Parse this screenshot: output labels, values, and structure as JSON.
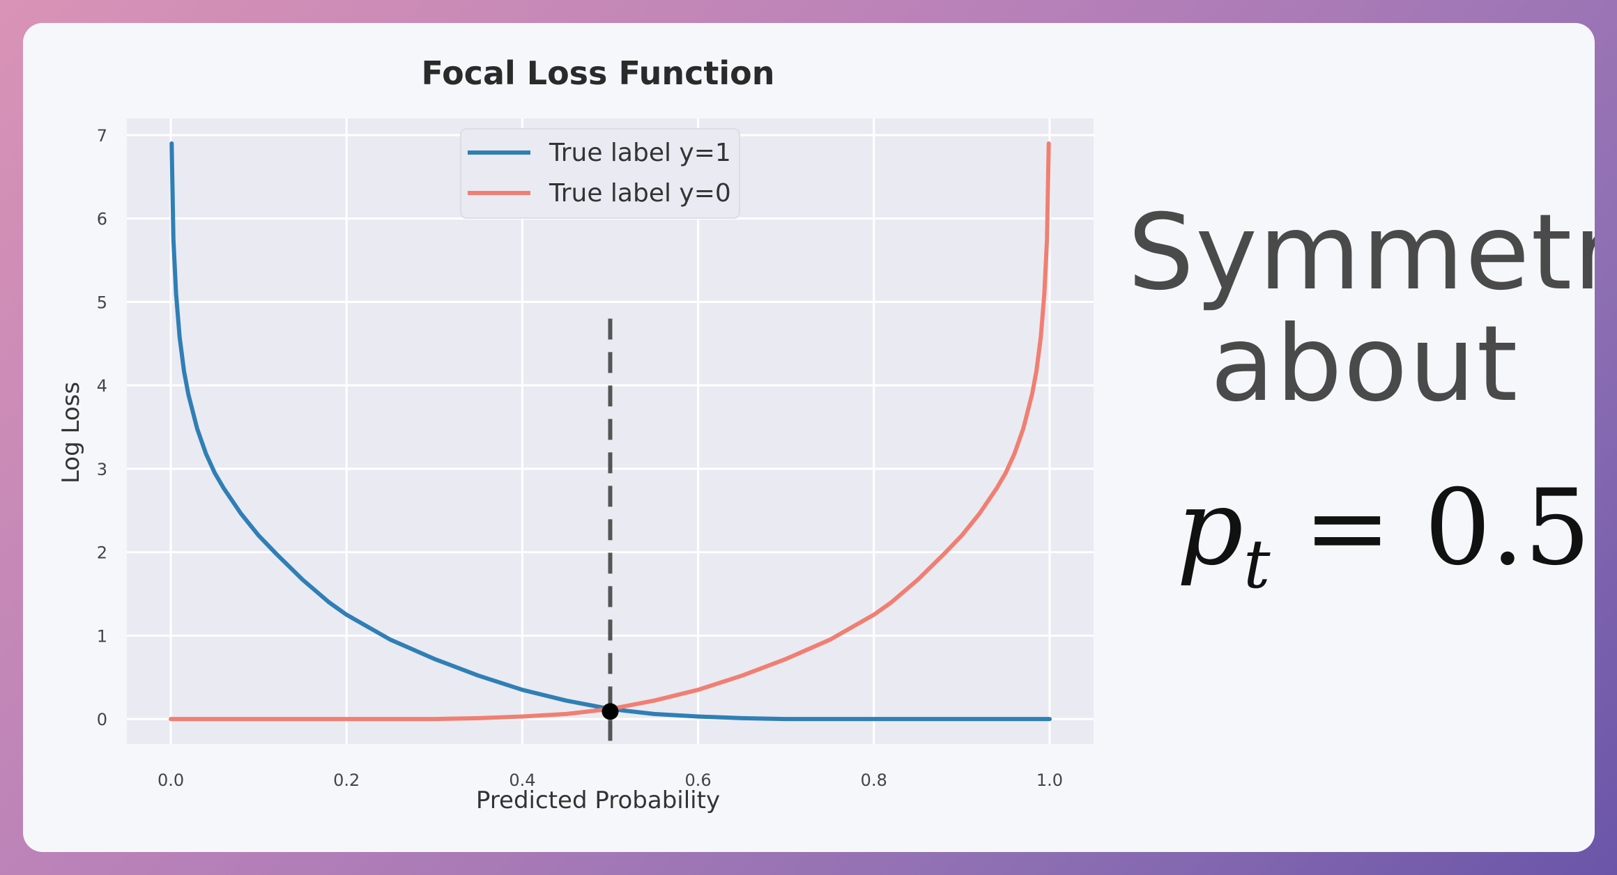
{
  "chart_data": {
    "type": "line",
    "title": "Focal Loss Function",
    "xlabel": "Predicted Probability",
    "ylabel": "Log Loss",
    "xlim": [
      -0.05,
      1.05
    ],
    "ylim": [
      -0.3,
      7.2
    ],
    "x_ticks": [
      "0.0",
      "0.2",
      "0.4",
      "0.6",
      "0.8",
      "1.0"
    ],
    "y_ticks": [
      "0",
      "1",
      "2",
      "3",
      "4",
      "5",
      "6",
      "7"
    ],
    "grid": true,
    "legend_position": "top-center",
    "series": [
      {
        "name": "True label y=1",
        "color": "#2f7fb5",
        "points": [
          [
            0.001,
            6.9
          ],
          [
            0.003,
            5.75
          ],
          [
            0.006,
            5.1
          ],
          [
            0.01,
            4.58
          ],
          [
            0.015,
            4.17
          ],
          [
            0.02,
            3.89
          ],
          [
            0.03,
            3.48
          ],
          [
            0.04,
            3.18
          ],
          [
            0.05,
            2.95
          ],
          [
            0.06,
            2.77
          ],
          [
            0.08,
            2.46
          ],
          [
            0.1,
            2.2
          ],
          [
            0.12,
            1.98
          ],
          [
            0.15,
            1.67
          ],
          [
            0.18,
            1.4
          ],
          [
            0.2,
            1.25
          ],
          [
            0.25,
            0.95
          ],
          [
            0.3,
            0.72
          ],
          [
            0.35,
            0.52
          ],
          [
            0.4,
            0.35
          ],
          [
            0.45,
            0.22
          ],
          [
            0.5,
            0.12
          ],
          [
            0.55,
            0.06
          ],
          [
            0.6,
            0.03
          ],
          [
            0.65,
            0.01
          ],
          [
            0.7,
            0.0
          ],
          [
            0.8,
            0.0
          ],
          [
            0.9,
            0.0
          ],
          [
            1.0,
            0.0
          ]
        ]
      },
      {
        "name": "True label y=0",
        "color": "#f07f72",
        "points": [
          [
            0.0,
            0.0
          ],
          [
            0.1,
            0.0
          ],
          [
            0.2,
            0.0
          ],
          [
            0.3,
            0.0
          ],
          [
            0.35,
            0.01
          ],
          [
            0.4,
            0.03
          ],
          [
            0.45,
            0.06
          ],
          [
            0.5,
            0.12
          ],
          [
            0.55,
            0.22
          ],
          [
            0.6,
            0.35
          ],
          [
            0.65,
            0.52
          ],
          [
            0.7,
            0.72
          ],
          [
            0.75,
            0.95
          ],
          [
            0.8,
            1.25
          ],
          [
            0.82,
            1.4
          ],
          [
            0.85,
            1.67
          ],
          [
            0.88,
            1.98
          ],
          [
            0.9,
            2.2
          ],
          [
            0.92,
            2.46
          ],
          [
            0.94,
            2.77
          ],
          [
            0.95,
            2.95
          ],
          [
            0.96,
            3.18
          ],
          [
            0.97,
            3.48
          ],
          [
            0.98,
            3.89
          ],
          [
            0.985,
            4.17
          ],
          [
            0.99,
            4.58
          ],
          [
            0.994,
            5.1
          ],
          [
            0.997,
            5.75
          ],
          [
            0.999,
            6.9
          ]
        ]
      }
    ],
    "vline": {
      "x": 0.5,
      "y_top": 4.8,
      "style": "dashed",
      "color": "#555555"
    },
    "marker": {
      "x": 0.5,
      "y": 0.09,
      "color": "#000000"
    }
  },
  "annotation": {
    "line1": "Symmetric",
    "line2": "about",
    "formula_var": "p",
    "formula_sub": "t",
    "formula_rest": " = 0.5"
  },
  "colors": {
    "plot_bg": "#eaeaf2",
    "card_bg": "#f6f7fb"
  }
}
